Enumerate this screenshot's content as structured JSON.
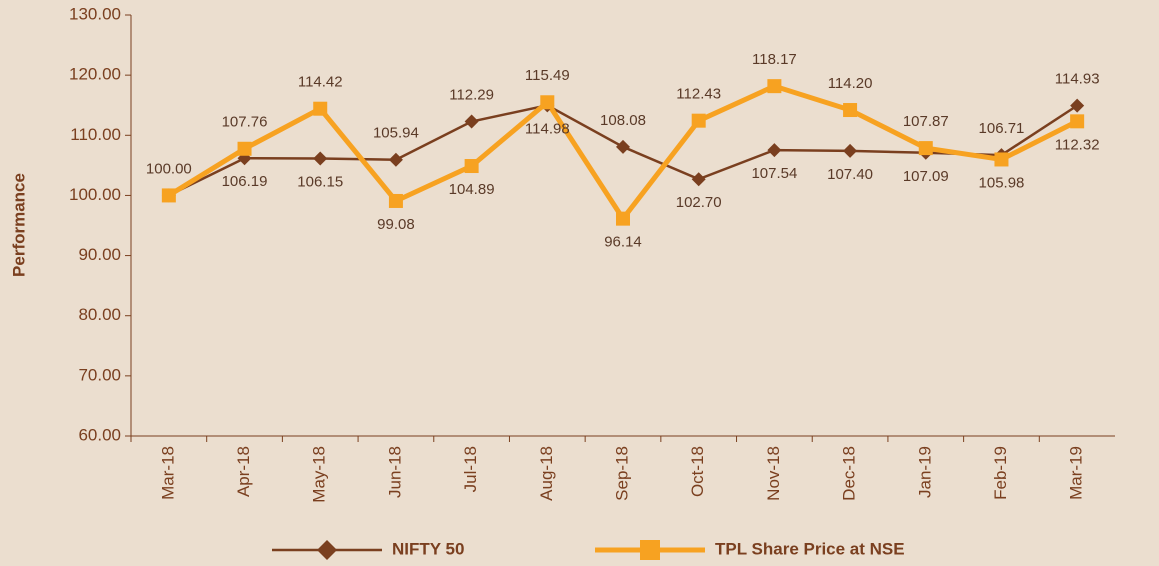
{
  "chart_data": {
    "type": "line",
    "y_label": "Performance",
    "categories": [
      "Mar-18",
      "Apr-18",
      "May-18",
      "Jun-18",
      "Jul-18",
      "Aug-18",
      "Sep-18",
      "Oct-18",
      "Nov-18",
      "Dec-18",
      "Jan-19",
      "Feb-19",
      "Mar-19"
    ],
    "series": [
      {
        "name": "NIFTY 50",
        "color": "#7a3f1f",
        "marker": "diamond",
        "values": [
          100,
          106.19,
          106.15,
          105.94,
          112.29,
          114.98,
          108.08,
          102.7,
          107.54,
          107.4,
          107.09,
          106.71,
          114.93
        ],
        "value_labels": [
          null,
          "106.19",
          "106.15",
          "105.94",
          "112.29",
          "114.98",
          "108.08",
          "102.70",
          "107.54",
          "107.40",
          "107.09",
          "106.71",
          "114.93"
        ]
      },
      {
        "name": "TPL Share Price at NSE",
        "color": "#f7a221",
        "marker": "square",
        "values": [
          100,
          107.76,
          114.42,
          99.08,
          104.89,
          115.49,
          96.14,
          112.43,
          118.17,
          114.2,
          107.87,
          105.98,
          112.32
        ],
        "value_labels": [
          "100.00",
          "107.76",
          "114.42",
          "99.08",
          "104.89",
          "115.49",
          "96.14",
          "112.43",
          "118.17",
          "114.20",
          "107.87",
          "105.98",
          "112.32"
        ]
      }
    ],
    "ylim": [
      60,
      130
    ],
    "yticks": [
      {
        "value": 60,
        "label": "60.00"
      },
      {
        "value": 70,
        "label": "70.00"
      },
      {
        "value": 80,
        "label": "80.00"
      },
      {
        "value": 90,
        "label": "90.00"
      },
      {
        "value": 100,
        "label": "100.00"
      },
      {
        "value": 110,
        "label": "110.00"
      },
      {
        "value": 120,
        "label": "120.00"
      },
      {
        "value": 130,
        "label": "130.00"
      }
    ],
    "legend": "bottom"
  }
}
